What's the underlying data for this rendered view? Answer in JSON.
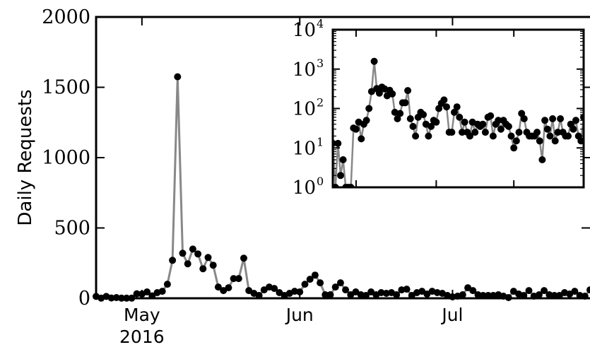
{
  "chart_data": [
    {
      "type": "line",
      "ylabel": "Daily Requests",
      "xlabel": "",
      "ylim": [
        0,
        2000
      ],
      "xlim": [
        "2016-04-22",
        "2016-07-28"
      ],
      "yticks": [
        0,
        500,
        1000,
        1500,
        2000
      ],
      "xticks": [
        {
          "date": "2016-05-01",
          "label": "May",
          "sublabel": "2016"
        },
        {
          "date": "2016-06-01",
          "label": "Jun",
          "sublabel": ""
        },
        {
          "date": "2016-07-01",
          "label": "Jul",
          "sublabel": ""
        }
      ],
      "grid": false,
      "line_color": "#888888",
      "marker_color": "#000000",
      "series": [
        {
          "x": [
            "2016-04-22",
            "2016-04-23",
            "2016-04-24",
            "2016-04-25",
            "2016-04-26",
            "2016-04-27",
            "2016-04-28",
            "2016-04-29",
            "2016-04-30",
            "2016-05-01",
            "2016-05-02",
            "2016-05-03",
            "2016-05-04",
            "2016-05-05",
            "2016-05-06",
            "2016-05-07",
            "2016-05-08",
            "2016-05-09",
            "2016-05-10",
            "2016-05-11",
            "2016-05-12",
            "2016-05-13",
            "2016-05-14",
            "2016-05-15",
            "2016-05-16",
            "2016-05-17",
            "2016-05-18",
            "2016-05-19",
            "2016-05-20",
            "2016-05-21",
            "2016-05-22",
            "2016-05-23",
            "2016-05-24",
            "2016-05-25",
            "2016-05-26",
            "2016-05-27",
            "2016-05-28",
            "2016-05-29",
            "2016-05-30",
            "2016-05-31",
            "2016-06-01",
            "2016-06-02",
            "2016-06-03",
            "2016-06-04",
            "2016-06-05",
            "2016-06-06",
            "2016-06-07",
            "2016-06-08",
            "2016-06-09",
            "2016-06-10",
            "2016-06-11",
            "2016-06-12",
            "2016-06-13",
            "2016-06-14",
            "2016-06-15",
            "2016-06-16",
            "2016-06-17",
            "2016-06-18",
            "2016-06-19",
            "2016-06-20",
            "2016-06-21",
            "2016-06-22",
            "2016-06-23",
            "2016-06-24",
            "2016-06-25",
            "2016-06-26",
            "2016-06-27",
            "2016-06-28",
            "2016-06-29",
            "2016-06-30",
            "2016-07-01",
            "2016-07-02",
            "2016-07-03",
            "2016-07-04",
            "2016-07-05",
            "2016-07-06",
            "2016-07-07",
            "2016-07-08",
            "2016-07-09",
            "2016-07-10",
            "2016-07-11",
            "2016-07-12",
            "2016-07-13",
            "2016-07-14",
            "2016-07-15",
            "2016-07-16",
            "2016-07-17",
            "2016-07-18",
            "2016-07-19",
            "2016-07-20",
            "2016-07-21",
            "2016-07-22",
            "2016-07-23",
            "2016-07-24",
            "2016-07-25",
            "2016-07-26",
            "2016-07-27",
            "2016-07-28"
          ],
          "y": [
            13,
            1,
            13,
            2,
            5,
            1,
            1,
            1,
            32,
            30,
            45,
            17,
            40,
            50,
            100,
            270,
            1575,
            320,
            245,
            350,
            315,
            210,
            290,
            235,
            80,
            55,
            75,
            140,
            140,
            285,
            55,
            35,
            20,
            60,
            80,
            70,
            40,
            20,
            35,
            50,
            45,
            100,
            135,
            165,
            110,
            25,
            25,
            80,
            110,
            60,
            25,
            45,
            25,
            20,
            45,
            25,
            40,
            35,
            40,
            25,
            60,
            65,
            20,
            40,
            50,
            30,
            50,
            40,
            35,
            20,
            10,
            15,
            25,
            75,
            55,
            25,
            20,
            20,
            20,
            25,
            15,
            5,
            50,
            30,
            20,
            55,
            15,
            25,
            55,
            25,
            20,
            20,
            40,
            30,
            50,
            20,
            15,
            60
          ]
        }
      ]
    },
    {
      "type": "line",
      "inset": true,
      "yscale": "log",
      "ylim": [
        1,
        10000
      ],
      "xlim": [
        "2016-04-22",
        "2016-07-28"
      ],
      "yticks": [
        {
          "value": 1,
          "base": "10",
          "exp": "0"
        },
        {
          "value": 10,
          "base": "10",
          "exp": "1"
        },
        {
          "value": 100,
          "base": "10",
          "exp": "2"
        },
        {
          "value": 1000,
          "base": "10",
          "exp": "3"
        },
        {
          "value": 10000,
          "base": "10",
          "exp": "4"
        }
      ],
      "grid": false,
      "line_color": "#888888",
      "marker_color": "#000000",
      "same_data_as_main": true
    }
  ]
}
